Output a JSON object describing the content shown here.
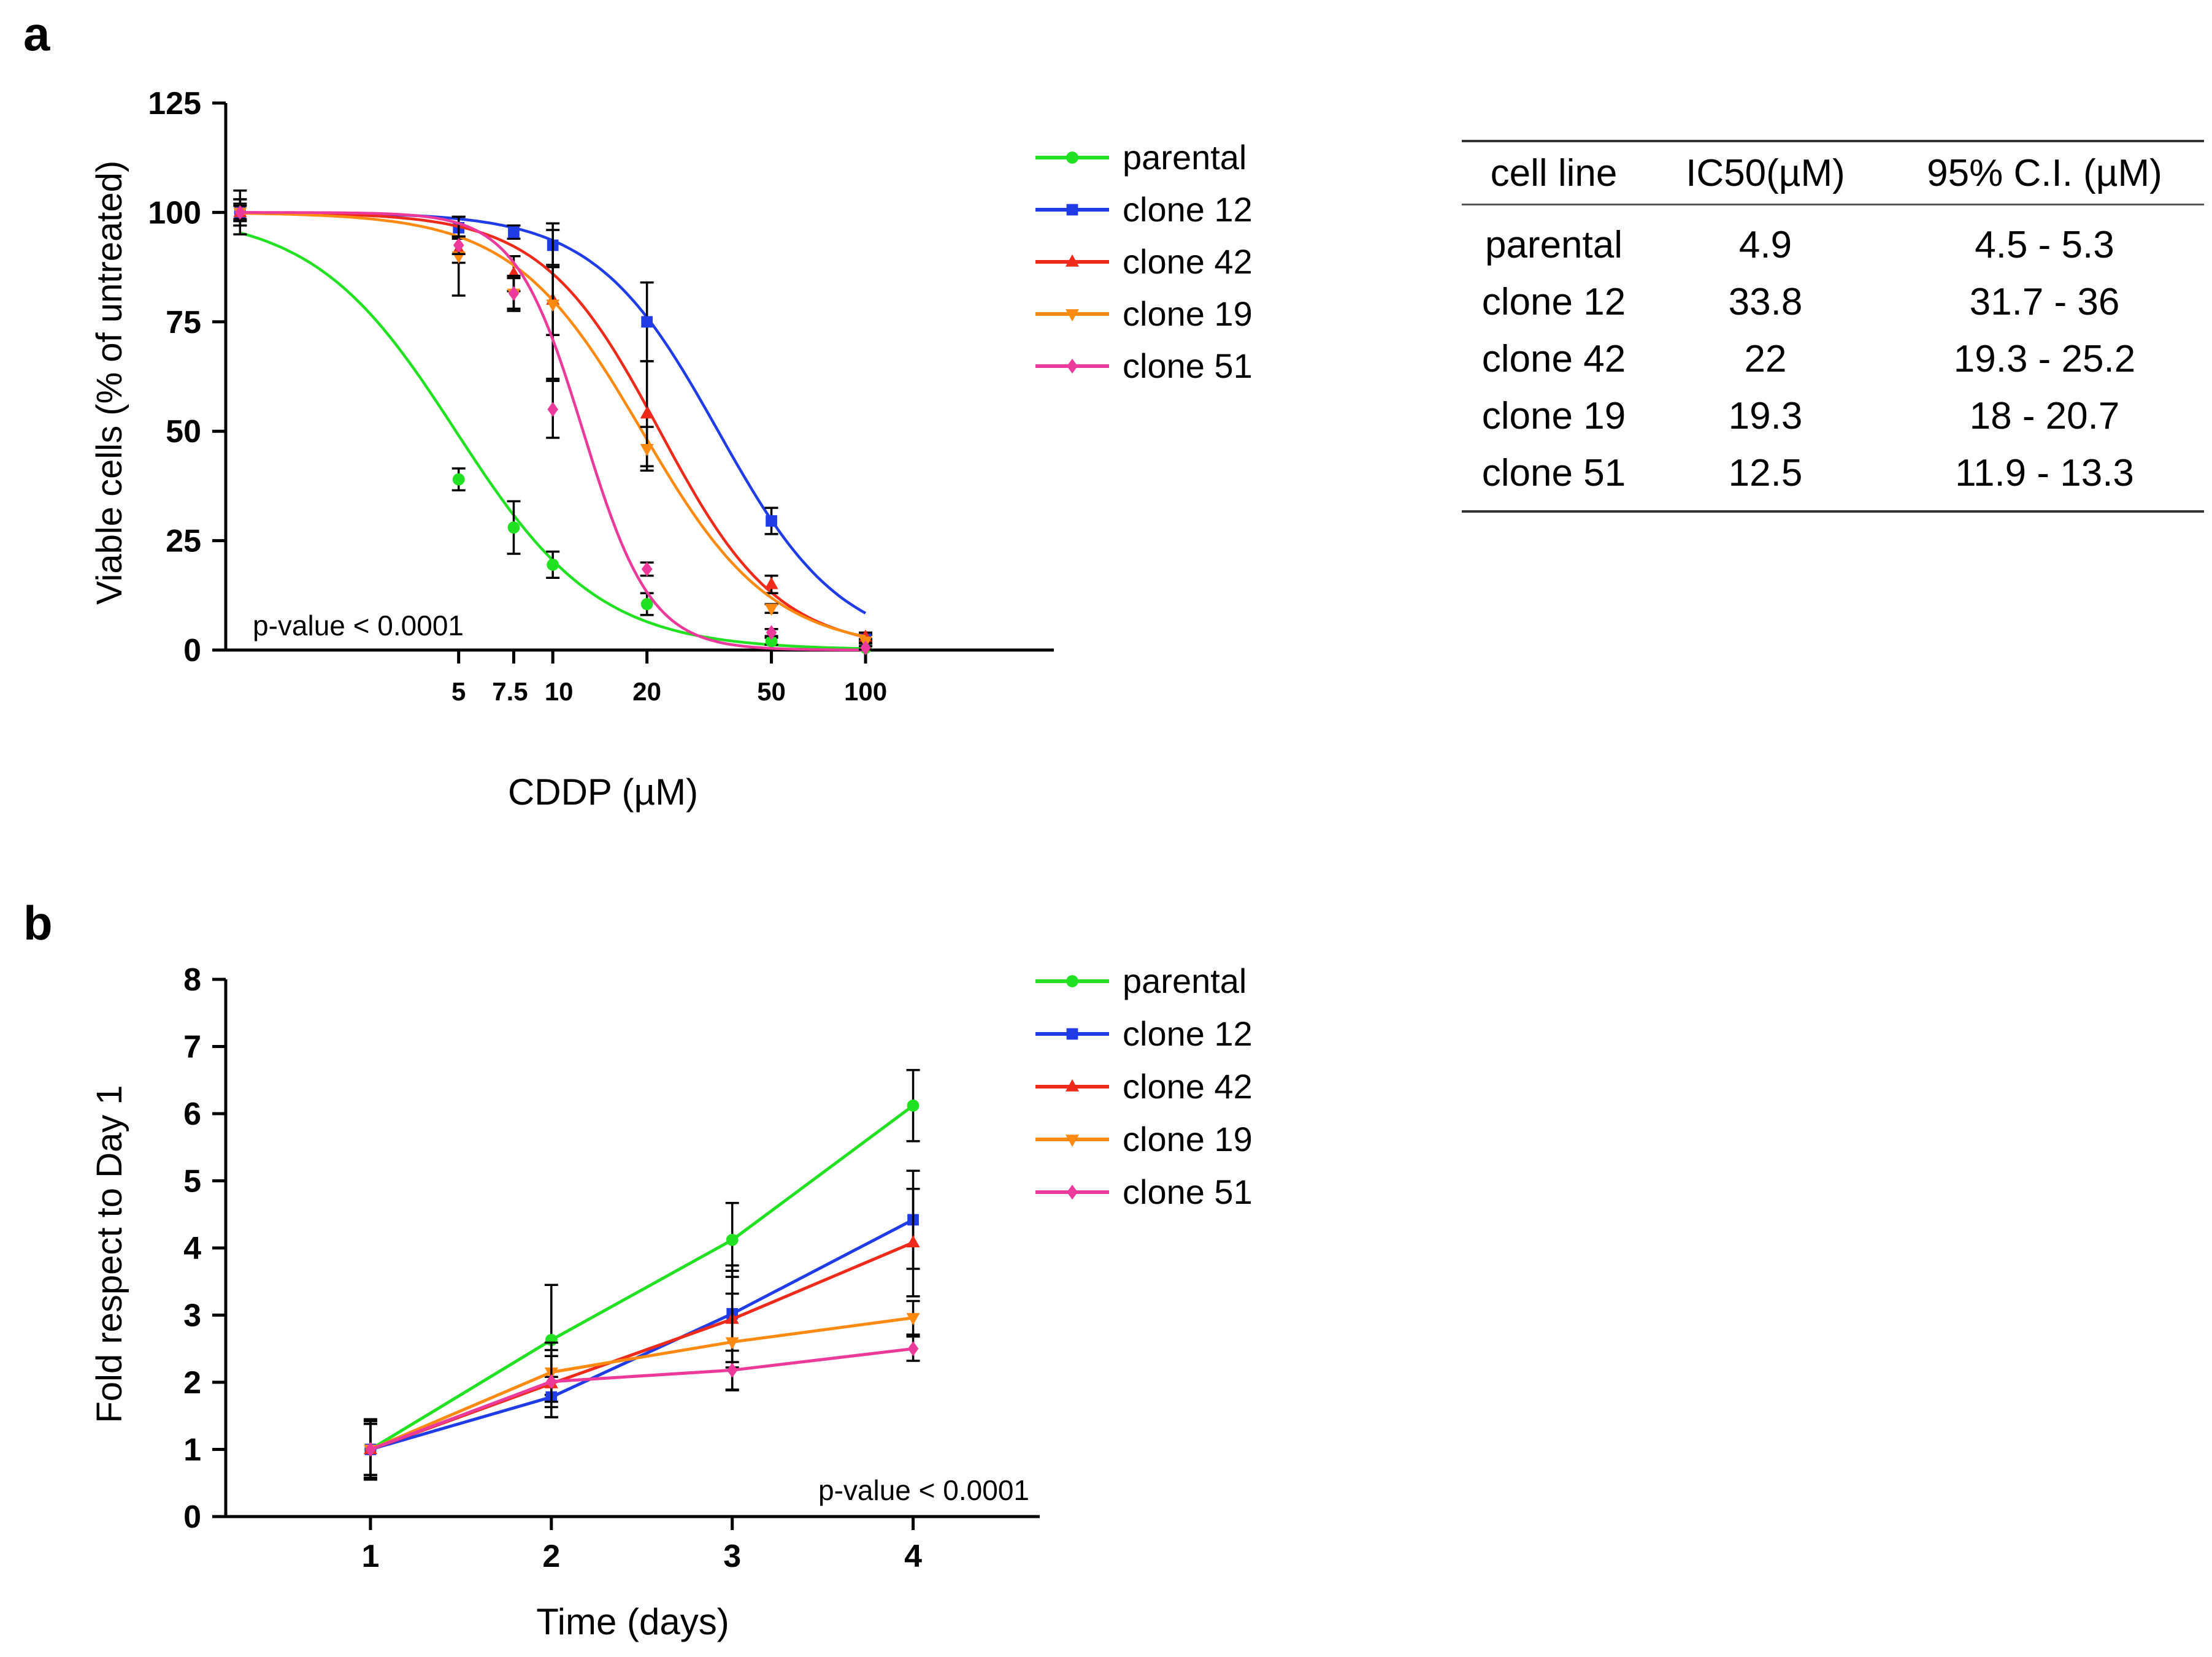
{
  "panels": {
    "a_label": "a",
    "b_label": "b"
  },
  "colors": {
    "parental": "#22e022",
    "clone 12": "#1f3ce6",
    "clone 42": "#ee2b1a",
    "clone 19": "#ff8a12",
    "clone 51": "#ec3a9c"
  },
  "chart_data": [
    {
      "id": "dose-response",
      "type": "line",
      "x_scale": "log",
      "title": "",
      "xlabel": "CDDP (µM)",
      "ylabel": "Viable cells (% of untreated)",
      "xticks": [
        5,
        7.5,
        10,
        20,
        50,
        100
      ],
      "xtick_labels": [
        "5",
        "7.5",
        "10",
        "20",
        "50",
        "100"
      ],
      "yticks": [
        0,
        25,
        50,
        75,
        100,
        125
      ],
      "xlim": [
        0.9,
        400
      ],
      "ylim": [
        0,
        125
      ],
      "annotation": "p-value < 0.0001",
      "legend_position": "right",
      "series": [
        {
          "name": "parental",
          "marker": "circle",
          "ic50": 4.9,
          "hill": 1.9,
          "x": [
            1,
            5,
            7.5,
            10,
            20,
            50,
            100
          ],
          "y": [
            100,
            39,
            28,
            19.5,
            10.5,
            2,
            0.5
          ],
          "err": [
            5,
            2.5,
            6,
            3,
            2.5,
            0.8,
            0.4
          ]
        },
        {
          "name": "clone 12",
          "marker": "square",
          "ic50": 33.8,
          "hill": 2.2,
          "x": [
            1,
            5,
            7.5,
            10,
            20,
            50,
            100
          ],
          "y": [
            100,
            96.5,
            95.5,
            92.5,
            75,
            29.5,
            2.5
          ],
          "err": [
            3,
            2.5,
            1.5,
            5,
            9,
            3,
            1
          ]
        },
        {
          "name": "clone 42",
          "marker": "triangle-up",
          "ic50": 22,
          "hill": 2.3,
          "x": [
            1,
            5,
            7.5,
            10,
            20,
            50,
            100
          ],
          "y": [
            100,
            91.5,
            86,
            80,
            54,
            15,
            3
          ],
          "err": [
            2,
            3,
            4,
            8,
            12,
            2,
            1
          ]
        },
        {
          "name": "clone 19",
          "marker": "triangle-down",
          "ic50": 19.3,
          "hill": 2.1,
          "x": [
            1,
            5,
            7.5,
            10,
            20,
            50,
            100
          ],
          "y": [
            100,
            90,
            81.5,
            79,
            46,
            9.5,
            2
          ],
          "err": [
            3,
            9,
            4,
            17,
            5,
            1,
            0.5
          ]
        },
        {
          "name": "clone 51",
          "marker": "diamond",
          "ic50": 12.5,
          "hill": 4,
          "x": [
            1,
            5,
            7.5,
            10,
            20,
            50,
            100
          ],
          "y": [
            100,
            92.5,
            81.5,
            55,
            18.5,
            4,
            0.5
          ],
          "err": [
            1.5,
            2,
            3.5,
            6.5,
            1.5,
            0.8,
            0.4
          ]
        }
      ]
    },
    {
      "id": "growth",
      "type": "line",
      "title": "",
      "xlabel": "Time (days)",
      "ylabel": "Fold respect to Day 1",
      "categories": [
        "1",
        "2",
        "3",
        "4"
      ],
      "x": [
        1,
        2,
        3,
        4
      ],
      "xlim": [
        0.2,
        4.7
      ],
      "ylim": [
        0,
        8
      ],
      "yticks": [
        0,
        1,
        2,
        3,
        4,
        5,
        6,
        7,
        8
      ],
      "annotation": "p-value < 0.0001",
      "legend_position": "right",
      "series": [
        {
          "name": "parental",
          "marker": "circle",
          "values": [
            1,
            2.63,
            4.12,
            6.12
          ],
          "err": [
            0.45,
            0.82,
            0.55,
            0.53
          ]
        },
        {
          "name": "clone 12",
          "marker": "square",
          "values": [
            1,
            1.78,
            3.02,
            4.42
          ],
          "err": [
            0.42,
            0.3,
            0.72,
            0.73
          ]
        },
        {
          "name": "clone 42",
          "marker": "triangle-up",
          "values": [
            1,
            1.98,
            2.94,
            4.08
          ],
          "err": [
            0.38,
            0.5,
            0.72,
            0.8
          ]
        },
        {
          "name": "clone 19",
          "marker": "triangle-down",
          "values": [
            1,
            2.15,
            2.6,
            2.96
          ],
          "err": [
            0.43,
            0.44,
            0.72,
            0.25
          ]
        },
        {
          "name": "clone 51",
          "marker": "diamond",
          "values": [
            1,
            2.01,
            2.18,
            2.5
          ],
          "err": [
            0.38,
            0.38,
            0.29,
            0.18
          ]
        }
      ]
    }
  ],
  "table": {
    "headers": [
      "cell line",
      "IC50(µM)",
      "95% C.I. (µM)"
    ],
    "rows": [
      [
        "parental",
        "4.9",
        "4.5 - 5.3"
      ],
      [
        "clone 12",
        "33.8",
        "31.7 - 36"
      ],
      [
        "clone 42",
        "22",
        "19.3 - 25.2"
      ],
      [
        "clone 19",
        "19.3",
        "18 - 20.7"
      ],
      [
        "clone 51",
        "12.5",
        "11.9 - 13.3"
      ]
    ]
  }
}
